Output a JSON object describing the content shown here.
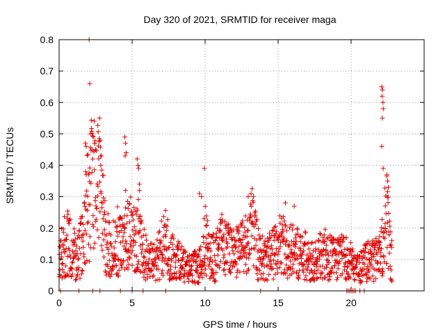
{
  "chart_data": {
    "type": "scatter",
    "title": "Day 320 of 2021, SRMTID for receiver maga",
    "xlabel": "GPS time / hours",
    "ylabel": "SRMTID / TECUs",
    "xlim": [
      0,
      25
    ],
    "ylim": [
      0,
      0.8
    ],
    "x_ticks": [
      0,
      5,
      10,
      15,
      20
    ],
    "y_ticks": [
      0,
      0.1,
      0.2,
      0.3,
      0.4,
      0.5,
      0.6,
      0.7,
      0.8
    ],
    "grid": true,
    "marker": "+",
    "color": "#e00000",
    "series": [
      {
        "name": "SRMTID",
        "trend_x": [
          0.0,
          0.3,
          0.6,
          1.0,
          1.3,
          1.5,
          1.8,
          2.0,
          2.2,
          2.4,
          2.6,
          2.8,
          3.0,
          3.2,
          3.5,
          3.8,
          4.0,
          4.3,
          4.6,
          4.9,
          5.2,
          5.5,
          5.8,
          6.2,
          6.6,
          7.0,
          7.3,
          7.6,
          8.0,
          8.5,
          9.0,
          9.5,
          9.8,
          10.0,
          10.3,
          10.7,
          11.0,
          11.5,
          12.0,
          12.5,
          13.0,
          13.3,
          13.6,
          14.0,
          14.5,
          15.0,
          15.3,
          15.6,
          16.0,
          16.5,
          17.0,
          17.5,
          18.0,
          18.5,
          19.0,
          19.5,
          20.5,
          21.0,
          21.5,
          22.0,
          22.2,
          22.4,
          22.6,
          22.8
        ],
        "trend_y": [
          0.1,
          0.14,
          0.15,
          0.12,
          0.1,
          0.15,
          0.22,
          0.28,
          0.32,
          0.33,
          0.3,
          0.35,
          0.26,
          0.15,
          0.14,
          0.13,
          0.16,
          0.14,
          0.16,
          0.19,
          0.15,
          0.19,
          0.12,
          0.1,
          0.09,
          0.13,
          0.17,
          0.11,
          0.1,
          0.08,
          0.07,
          0.08,
          0.1,
          0.16,
          0.12,
          0.1,
          0.14,
          0.16,
          0.12,
          0.13,
          0.15,
          0.22,
          0.12,
          0.1,
          0.11,
          0.13,
          0.16,
          0.12,
          0.13,
          0.12,
          0.11,
          0.1,
          0.12,
          0.11,
          0.1,
          0.11,
          0.07,
          0.09,
          0.1,
          0.12,
          0.16,
          0.24,
          0.15,
          0.09
        ],
        "outliers": [
          [
            2.05,
            0.8
          ],
          [
            2.1,
            0.66
          ],
          [
            2.15,
            0.5
          ],
          [
            1.8,
            0.47
          ],
          [
            1.85,
            0.46
          ],
          [
            2.45,
            0.47
          ],
          [
            2.5,
            0.45
          ],
          [
            2.9,
            0.43
          ],
          [
            2.85,
            0.4
          ],
          [
            2.3,
            0.42
          ],
          [
            4.5,
            0.49
          ],
          [
            4.55,
            0.47
          ],
          [
            4.6,
            0.44
          ],
          [
            4.52,
            0.43
          ],
          [
            5.35,
            0.42
          ],
          [
            5.4,
            0.4
          ],
          [
            5.45,
            0.39
          ],
          [
            5.5,
            0.34
          ],
          [
            4.55,
            0.32
          ],
          [
            9.95,
            0.39
          ],
          [
            9.6,
            0.31
          ],
          [
            9.75,
            0.3
          ],
          [
            12.95,
            0.3
          ],
          [
            15.5,
            0.28
          ],
          [
            16.1,
            0.27
          ],
          [
            22.1,
            0.65
          ],
          [
            22.15,
            0.64
          ],
          [
            22.12,
            0.62
          ],
          [
            22.18,
            0.6
          ],
          [
            22.2,
            0.58
          ],
          [
            22.14,
            0.55
          ],
          [
            22.1,
            0.46
          ],
          [
            22.2,
            0.39
          ],
          [
            22.45,
            0.37
          ],
          [
            22.5,
            0.35
          ],
          [
            22.55,
            0.33
          ]
        ],
        "baseline_x": [
          0.1,
          1.35,
          2.3,
          2.8,
          4.2,
          5.0,
          5.75,
          7.3,
          13.8,
          19.7,
          19.8,
          19.9,
          20.0,
          20.1,
          20.2,
          20.3,
          20.6,
          20.9
        ]
      }
    ]
  }
}
